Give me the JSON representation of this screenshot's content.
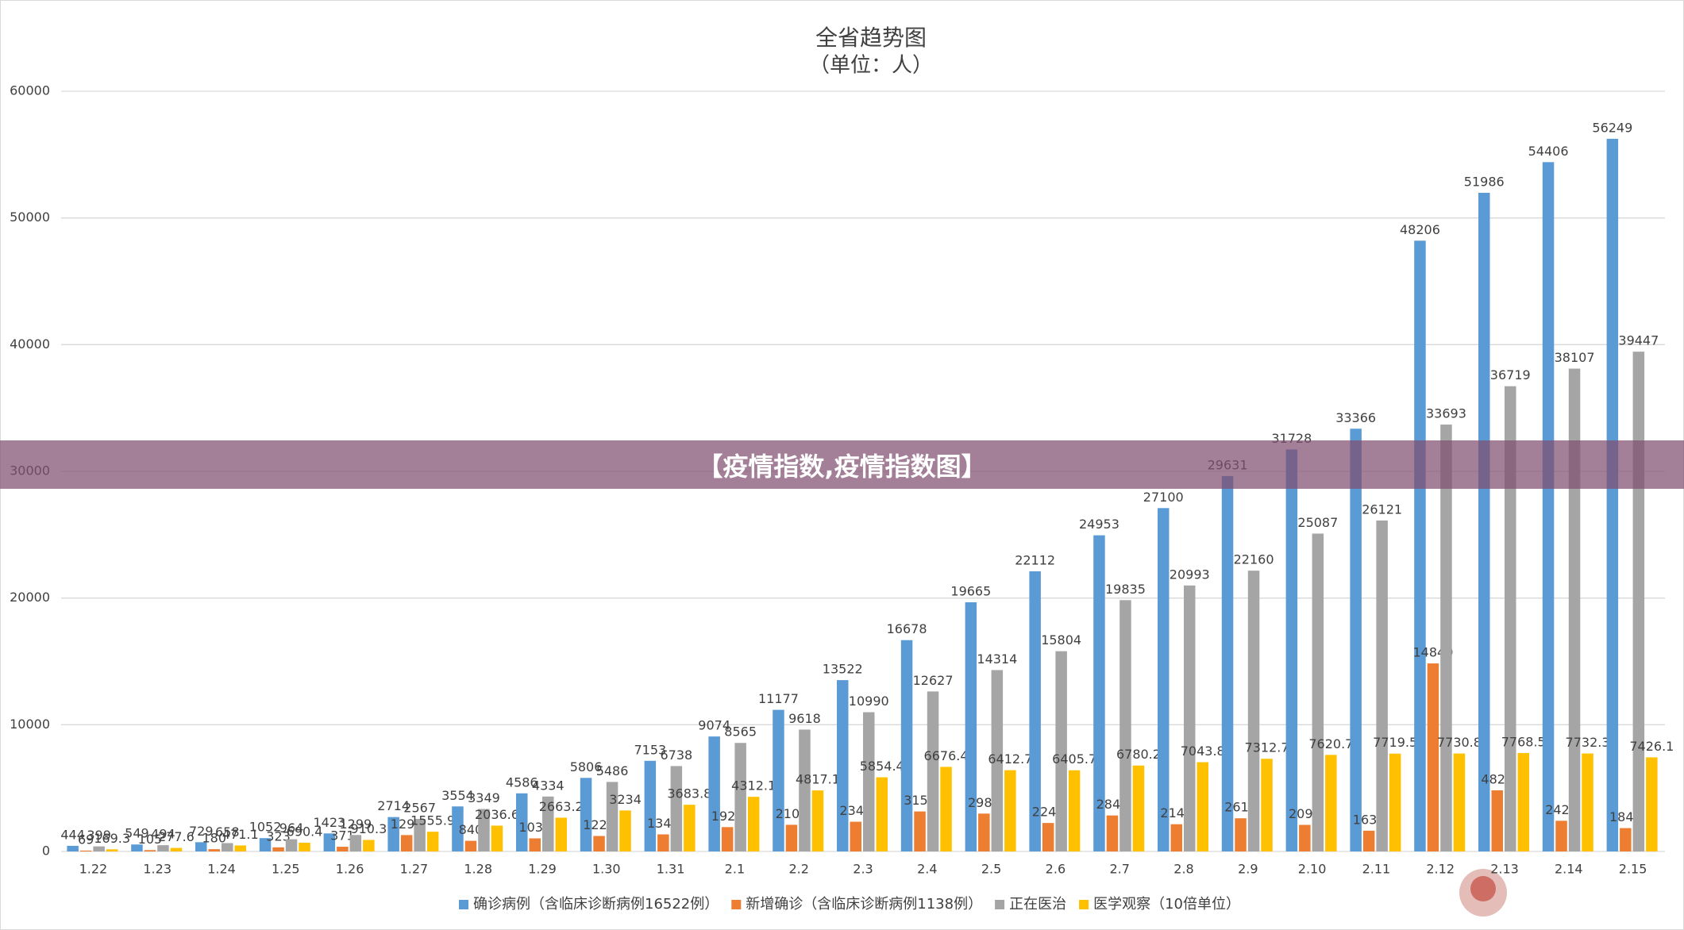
{
  "chart_data": {
    "type": "bar",
    "title": "全省趋势图",
    "subtitle": "（单位：人）",
    "categories": [
      "1.22",
      "1.23",
      "1.24",
      "1.25",
      "1.26",
      "1.27",
      "1.28",
      "1.29",
      "1.30",
      "1.31",
      "2.1",
      "2.2",
      "2.3",
      "2.4",
      "2.5",
      "2.6",
      "2.7",
      "2.8",
      "2.9",
      "2.10",
      "2.11",
      "2.12",
      "2.13",
      "2.14",
      "2.15"
    ],
    "series": [
      {
        "name": "确诊病例（含临床诊断病例16522例）",
        "color": "#5b9bd5",
        "values": [
          444,
          549,
          729,
          1052,
          1423,
          2714,
          3554,
          4586,
          5806,
          7153,
          9074,
          11177,
          13522,
          16678,
          19665,
          22112,
          24953,
          27100,
          29631,
          31728,
          33366,
          48206,
          51986,
          54406,
          56249
        ]
      },
      {
        "name": "新增确诊（含临床诊断病例1138例）",
        "color": "#ed7d31",
        "values": [
          69,
          105,
          180,
          323,
          371,
          1291,
          840,
          1032,
          1220,
          1347,
          1921,
          2103,
          2345,
          3156,
          2987,
          2247,
          2841,
          2147,
          2618,
          2097,
          1638,
          14840,
          4823,
          2420,
          1843
        ]
      },
      {
        "name": "正在医治",
        "color": "#a5a5a5",
        "values": [
          399,
          494,
          658,
          964,
          1299,
          2567,
          3349,
          4334,
          5486,
          6738,
          8565,
          9618,
          10990,
          12627,
          14314,
          15804,
          19835,
          20993,
          22160,
          25087,
          26121,
          33693,
          36719,
          38107,
          39447
        ]
      },
      {
        "name": "医学观察（10倍单位）",
        "color": "#ffc000",
        "values": [
          169.3,
          277.6,
          471.1,
          690.4,
          910.3,
          1555.9,
          2036.6,
          2663.2,
          3234,
          3683.8,
          4312.1,
          4817.1,
          5854.4,
          6676.4,
          6412.7,
          6405.7,
          6780.2,
          7043.8,
          7312.7,
          7620.7,
          7719.5,
          7730.8,
          7768.5,
          7732.3,
          7426.1
        ]
      }
    ],
    "ylim": [
      0,
      60000
    ],
    "yticks": [
      0,
      10000,
      20000,
      30000,
      40000,
      50000,
      60000
    ],
    "grid": true,
    "legend": "bottom"
  },
  "banner": "【疫情指数,疫情指数图】"
}
